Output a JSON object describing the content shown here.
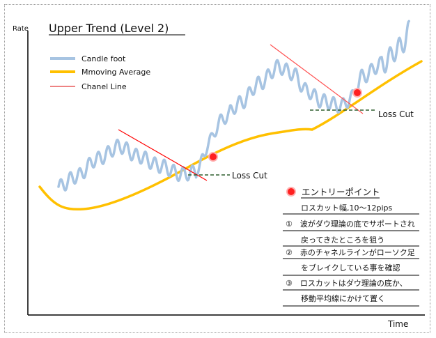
{
  "chart_data": {
    "type": "line",
    "title": "Upper Trend (Level 2)",
    "xlabel": "Time",
    "ylabel": "Rate",
    "legend": [
      {
        "name": "Candle foot",
        "color": "#a7c4e2"
      },
      {
        "name": "Mmoving Average",
        "color": "#ffc000"
      },
      {
        "name": "Chanel Line",
        "color": "#e85a5a"
      }
    ],
    "annotations": {
      "loss_cut_1": "Loss Cut",
      "loss_cut_2": "Loss Cut"
    }
  },
  "notes": {
    "header": "エントリーポイント",
    "lines": [
      "ロスカット幅,10～12pips",
      "①　波がダウ理論の底でサポートされ",
      "戻ってきたところを狙う",
      "②　赤のチャネルラインがローソク足",
      "をブレイクしている事を確認",
      "③　ロスカットはダウ理論の底か、",
      "移動平均線にかけて置く"
    ]
  },
  "colors": {
    "candle": "#a7c4e2",
    "ma": "#ffc000",
    "channel_legend": "#e85a5a",
    "channel": "#ff0000",
    "loss_cut": "#2e5e2e",
    "entry_dot": "#ff2020"
  }
}
